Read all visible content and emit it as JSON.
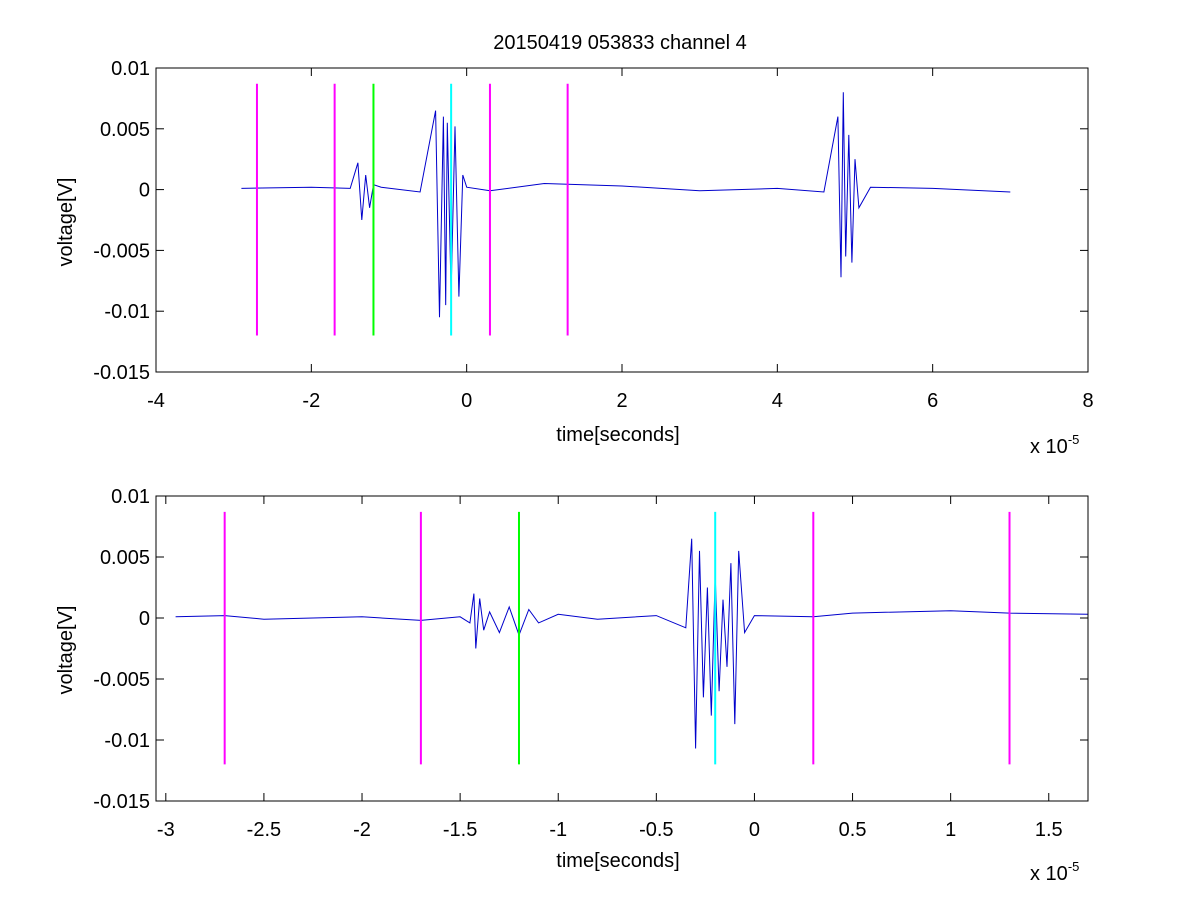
{
  "figure": {
    "title": "20150419 053833 channel 4"
  },
  "chart_data": [
    {
      "type": "line",
      "title": "20150419 053833 channel 4",
      "xlabel": "time[seconds]",
      "ylabel": "voltage[V]",
      "x_multiplier": "x 10",
      "x_multiplier_exponent": "-5",
      "xlim": [
        -4,
        8
      ],
      "ylim": [
        -0.015,
        0.01
      ],
      "xticks": [
        -4,
        -2,
        0,
        2,
        4,
        6,
        8
      ],
      "xtick_labels": [
        "-4",
        "-2",
        "0",
        "2",
        "4",
        "6",
        "8"
      ],
      "yticks": [
        0.01,
        0.005,
        0,
        -0.005,
        -0.01,
        -0.015
      ],
      "ytick_labels": [
        "0.01",
        "0.005",
        "0",
        "-0.005",
        "-0.01",
        "-0.015"
      ],
      "grid": false,
      "series": [
        {
          "color": "#0000cc",
          "x": [
            -2.9,
            -2.0,
            -1.5,
            -1.4,
            -1.35,
            -1.3,
            -1.25,
            -1.2,
            -1.1,
            -0.6,
            -0.4,
            -0.35,
            -0.3,
            -0.27,
            -0.25,
            -0.2,
            -0.15,
            -0.1,
            -0.05,
            0.0,
            0.3,
            1.0,
            2.0,
            3.0,
            4.0,
            4.6,
            4.78,
            4.82,
            4.85,
            4.88,
            4.92,
            4.96,
            5.0,
            5.05,
            5.2,
            6.0,
            7.0
          ],
          "y": [
            0.0001,
            0.0002,
            0.0001,
            0.0022,
            -0.0025,
            0.0012,
            -0.0015,
            0.0004,
            0.0002,
            -0.0002,
            0.0065,
            -0.0105,
            0.006,
            -0.0095,
            0.0055,
            -0.0085,
            0.0052,
            -0.0088,
            0.0012,
            0.0002,
            -0.0001,
            0.0005,
            0.0003,
            -0.0001,
            0.0001,
            -0.0002,
            0.006,
            -0.0072,
            0.008,
            -0.0055,
            0.0045,
            -0.006,
            0.0025,
            -0.0015,
            0.0002,
            0.0001,
            -0.0002
          ]
        }
      ],
      "markers": [
        {
          "x": -2.7,
          "color": "#ff00ff"
        },
        {
          "x": -1.7,
          "color": "#ff00ff"
        },
        {
          "x": -1.2,
          "color": "#00ff00"
        },
        {
          "x": -0.2,
          "color": "#00ffff"
        },
        {
          "x": 0.3,
          "color": "#ff00ff"
        },
        {
          "x": 1.3,
          "color": "#ff00ff"
        }
      ],
      "marker_range": [
        -0.012,
        0.0087
      ]
    },
    {
      "type": "line",
      "title": "",
      "xlabel": "time[seconds]",
      "ylabel": "voltage[V]",
      "x_multiplier": "x 10",
      "x_multiplier_exponent": "-5",
      "xlim": [
        -3.05,
        1.7
      ],
      "ylim": [
        -0.015,
        0.01
      ],
      "xticks": [
        -3,
        -2.5,
        -2,
        -1.5,
        -1,
        -0.5,
        0,
        0.5,
        1,
        1.5
      ],
      "xtick_labels": [
        "-3",
        "-2.5",
        "-2",
        "-1.5",
        "-1",
        "-0.5",
        "0",
        "0.5",
        "1",
        "1.5"
      ],
      "yticks": [
        0.01,
        0.005,
        0,
        -0.005,
        -0.01,
        -0.015
      ],
      "ytick_labels": [
        "0.01",
        "0.005",
        "0",
        "-0.005",
        "-0.01",
        "-0.015"
      ],
      "grid": false,
      "series": [
        {
          "color": "#0000cc",
          "x": [
            -2.95,
            -2.7,
            -2.5,
            -2.0,
            -1.7,
            -1.5,
            -1.45,
            -1.43,
            -1.42,
            -1.4,
            -1.38,
            -1.35,
            -1.3,
            -1.25,
            -1.2,
            -1.15,
            -1.1,
            -1.0,
            -0.8,
            -0.5,
            -0.35,
            -0.32,
            -0.3,
            -0.28,
            -0.26,
            -0.24,
            -0.22,
            -0.2,
            -0.18,
            -0.16,
            -0.14,
            -0.12,
            -0.1,
            -0.08,
            -0.05,
            0.0,
            0.3,
            0.5,
            1.0,
            1.3,
            1.7
          ],
          "y": [
            0.0001,
            0.0002,
            -0.0001,
            0.0001,
            -0.0002,
            0.0001,
            -0.0004,
            0.002,
            -0.0025,
            0.0016,
            -0.001,
            0.0005,
            -0.0012,
            0.0009,
            -0.0014,
            0.0007,
            -0.0004,
            0.0003,
            -0.0001,
            0.0002,
            -0.0008,
            0.0065,
            -0.0107,
            0.0055,
            -0.0065,
            0.0025,
            -0.008,
            0.0035,
            -0.006,
            0.0015,
            -0.004,
            0.0045,
            -0.0087,
            0.0055,
            -0.0012,
            0.0002,
            0.0001,
            0.0004,
            0.0006,
            0.0004,
            0.0003
          ]
        }
      ],
      "markers": [
        {
          "x": -2.7,
          "color": "#ff00ff"
        },
        {
          "x": -1.7,
          "color": "#ff00ff"
        },
        {
          "x": -1.2,
          "color": "#00ff00"
        },
        {
          "x": -0.2,
          "color": "#00ffff"
        },
        {
          "x": 0.3,
          "color": "#ff00ff"
        },
        {
          "x": 1.3,
          "color": "#ff00ff"
        }
      ],
      "marker_range": [
        -0.012,
        0.0087
      ]
    }
  ]
}
